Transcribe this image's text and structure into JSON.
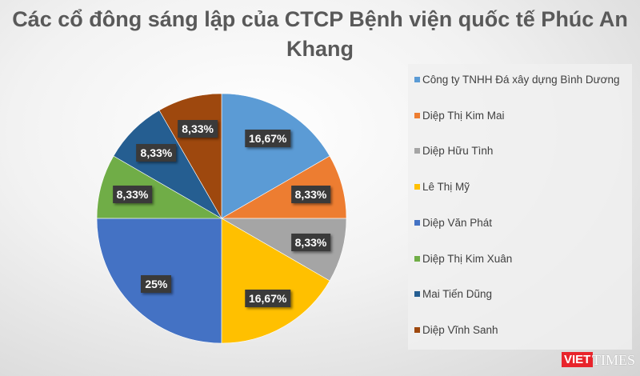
{
  "chart_data": {
    "type": "pie",
    "title": "Các cổ đông sáng lập của CTCP Bệnh viện quốc tế Phúc An Khang",
    "legend_position": "right",
    "slices": [
      {
        "name": "Công ty TNHH Đá xây dựng Bình Dương",
        "value": 16.67,
        "label": "16,67%",
        "color": "#5b9bd5"
      },
      {
        "name": "Diệp Thị Kim Mai",
        "value": 8.33,
        "label": "8,33%",
        "color": "#ed7d31"
      },
      {
        "name": "Diệp Hữu Tình",
        "value": 8.33,
        "label": "8,33%",
        "color": "#a5a5a5"
      },
      {
        "name": "Lê Thị Mỹ",
        "value": 16.67,
        "label": "16,67%",
        "color": "#ffc000"
      },
      {
        "name": "Diệp Văn Phát",
        "value": 25,
        "label": "25%",
        "color": "#4472c4"
      },
      {
        "name": "Diệp Thị Kim Xuân",
        "value": 8.33,
        "label": "8,33%",
        "color": "#70ad47"
      },
      {
        "name": "Mai Tiến Dũng",
        "value": 8.33,
        "label": "8,33%",
        "color": "#255e91"
      },
      {
        "name": "Diệp Vĩnh Sanh",
        "value": 8.33,
        "label": "8,33%",
        "color": "#9e480e"
      }
    ]
  },
  "watermark": {
    "part1": "VIET",
    "part2": "TIMES",
    "accent": "#e8242b"
  }
}
